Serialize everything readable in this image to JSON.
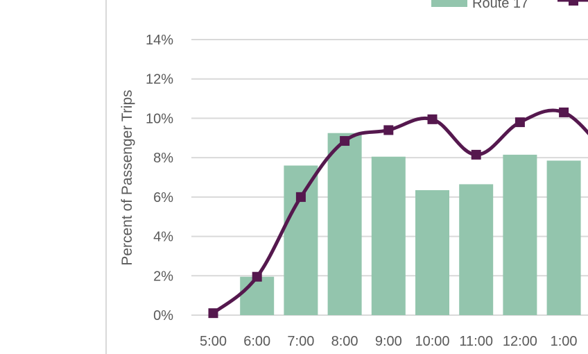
{
  "chart_data": {
    "type": "bar",
    "title": "",
    "xlabel": "",
    "ylabel": "Percent of Passenger Trips",
    "ylim": [
      0,
      14
    ],
    "yticks": [
      "0%",
      "2%",
      "4%",
      "6%",
      "8%",
      "10%",
      "12%",
      "14%"
    ],
    "grid": true,
    "legend_position": "top-right",
    "categories": [
      "5:00",
      "6:00",
      "7:00",
      "8:00",
      "9:00",
      "10:00",
      "11:00",
      "12:00",
      "1:00"
    ],
    "series": [
      {
        "name": "Route 17",
        "type": "bar",
        "color": "#93c5ad",
        "values": [
          0,
          1.95,
          7.6,
          9.25,
          8.05,
          6.35,
          6.65,
          8.15,
          7.85
        ]
      },
      {
        "name": "",
        "type": "line",
        "color": "#55184e",
        "marker": "square",
        "values": [
          0.1,
          1.95,
          6.0,
          8.85,
          9.4,
          9.95,
          8.15,
          9.8,
          10.3
        ]
      }
    ]
  }
}
